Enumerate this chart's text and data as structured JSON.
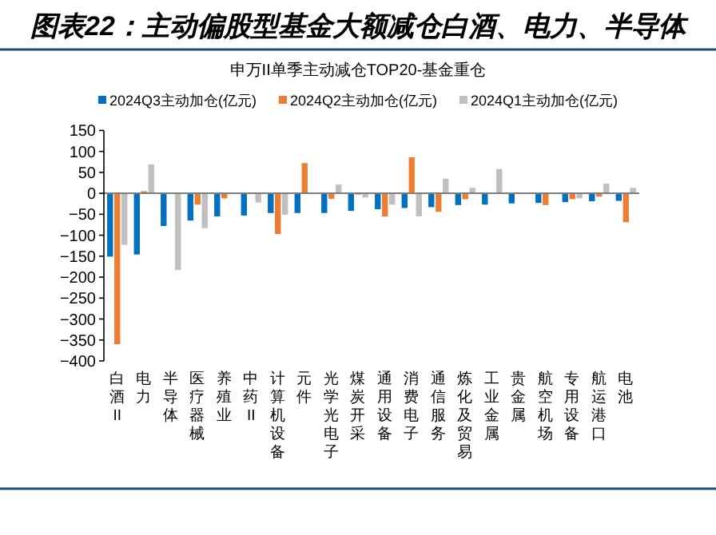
{
  "chart_data": {
    "type": "bar",
    "title": "图表22：主动偏股型基金大额减仓白酒、电力、半导体",
    "subtitle": "申万II单季主动减仓TOP20-基金重仓",
    "categories": [
      "白酒II",
      "电力",
      "半导体",
      "医疗器械",
      "养殖业",
      "中药II",
      "计算机设备",
      "元件",
      "光学光电子",
      "煤炭开采",
      "通用设备",
      "消费电子",
      "通信服务",
      "炼化及贸易",
      "工业金属",
      "贵金属",
      "航空机场",
      "专用设备",
      "航运港口",
      "电池"
    ],
    "series": [
      {
        "name": "2024Q3主动加仓(亿元)",
        "color": "#0070c0",
        "values": [
          -151,
          -146,
          -78,
          -65,
          -55,
          -53,
          -47,
          -47,
          -47,
          -42,
          -38,
          -35,
          -33,
          -28,
          -27,
          -24,
          -23,
          -21,
          -19,
          -18
        ]
      },
      {
        "name": "2024Q2主动加仓(亿元)",
        "color": "#ed7d31",
        "values": [
          -360,
          5,
          0,
          -27,
          -12,
          null,
          -97,
          72,
          -13,
          -3,
          -55,
          86,
          -44,
          -14,
          0,
          null,
          -28,
          -14,
          -8,
          -69
        ]
      },
      {
        "name": "2024Q1主动加仓(亿元)",
        "color": "#bfbfbf",
        "values": [
          -123,
          69,
          -183,
          -83,
          0,
          -22,
          -51,
          0,
          21,
          -10,
          -27,
          -55,
          35,
          13,
          58,
          null,
          0,
          -12,
          23,
          13
        ]
      }
    ],
    "ylim": [
      -400,
      150
    ],
    "yticks": [
      -400,
      -350,
      -300,
      -250,
      -200,
      -150,
      -100,
      -50,
      0,
      50,
      100,
      150
    ],
    "legend": "top"
  }
}
